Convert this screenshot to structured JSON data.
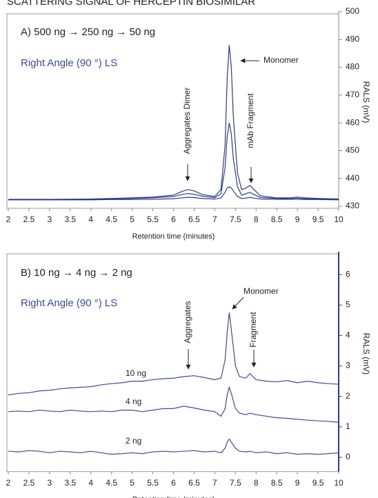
{
  "title": "SCATTERING SIGNAL OF HERCEPTIN BIOSIMILAR",
  "chart_data": [
    {
      "type": "line",
      "x_label": "Retention time (minutes)",
      "y_label": "RALS (mV)",
      "annotations": [
        "A) 500 ng → 250 ng → 50 ng",
        "Right Angle (90 °) LS",
        "Monomer",
        "Aggregates Dimer",
        "mAb Fragment"
      ],
      "x": [
        2,
        3,
        4,
        4.5,
        5,
        5.5,
        6,
        6.2,
        6.35,
        6.5,
        6.7,
        7,
        7.15,
        7.25,
        7.3,
        7.35,
        7.4,
        7.45,
        7.55,
        7.65,
        7.75,
        7.85,
        7.95,
        8.1,
        8.5,
        8.8,
        9,
        9.2,
        9.5,
        10
      ],
      "series": [
        {
          "color": "#2b3a8c",
          "values": [
            432.5,
            432.5,
            432.6,
            432.8,
            433.0,
            433.3,
            434,
            435.3,
            436,
            435.5,
            434.2,
            433.5,
            436,
            452,
            476,
            488,
            480,
            462,
            442,
            436,
            436.5,
            437.5,
            436,
            433.8,
            433,
            433,
            433.3,
            433,
            432.8,
            432.6
          ]
        },
        {
          "color": "#2b3a8c",
          "values": [
            432.4,
            432.4,
            432.5,
            432.6,
            432.8,
            433,
            433.5,
            434.2,
            434.6,
            434.3,
            433.6,
            433.1,
            434.5,
            444,
            455,
            460,
            456,
            447,
            437,
            434,
            434.5,
            435,
            434.2,
            433.2,
            432.8,
            432.7,
            432.9,
            432.7,
            432.6,
            432.5
          ]
        },
        {
          "color": "#2b3a8c",
          "values": [
            432.3,
            432.3,
            432.3,
            432.4,
            432.4,
            432.5,
            432.7,
            433,
            433.2,
            433.1,
            432.8,
            432.6,
            433,
            435,
            436.5,
            437,
            436.6,
            435.5,
            433.5,
            432.8,
            432.9,
            433.2,
            432.9,
            432.6,
            432.5,
            432.5,
            432.5,
            432.4,
            432.4,
            432.3
          ]
        }
      ],
      "xlim": [
        2,
        10
      ],
      "xticks": [
        2,
        2.5,
        3,
        3.5,
        4,
        4.5,
        5,
        5.5,
        6,
        6.5,
        7,
        7.5,
        8,
        8.5,
        9,
        9.5,
        10
      ],
      "ylim": [
        430,
        500
      ],
      "yticks": [
        430,
        440,
        450,
        460,
        470,
        480,
        490,
        500
      ]
    },
    {
      "type": "line",
      "x_label": "Retention time (minutes)",
      "y_label": "RALS (mV)",
      "annotations": [
        "B) 10 ng → 4 ng → 2 ng",
        "Right Angle (90 °) LS",
        "Monomer",
        "Aggregates",
        "Fragment"
      ],
      "x": [
        2,
        2.25,
        2.5,
        2.75,
        3,
        3.25,
        3.5,
        3.75,
        4,
        4.25,
        4.5,
        4.75,
        5,
        5.25,
        5.5,
        5.75,
        6,
        6.25,
        6.5,
        6.75,
        7,
        7.15,
        7.25,
        7.3,
        7.35,
        7.4,
        7.5,
        7.6,
        7.75,
        7.85,
        8,
        8.25,
        8.5,
        8.75,
        9,
        9.25,
        9.5,
        9.75,
        10
      ],
      "series": [
        {
          "name": "10 ng",
          "color": "#3a4c9e",
          "values": [
            2.05,
            2.1,
            2.12,
            2.18,
            2.2,
            2.25,
            2.28,
            2.3,
            2.32,
            2.38,
            2.42,
            2.45,
            2.5,
            2.5,
            2.55,
            2.58,
            2.6,
            2.65,
            2.68,
            2.62,
            2.55,
            2.6,
            3.2,
            4.1,
            4.75,
            4.2,
            3.0,
            2.65,
            2.6,
            2.75,
            2.55,
            2.5,
            2.48,
            2.52,
            2.45,
            2.5,
            2.45,
            2.42,
            2.4
          ]
        },
        {
          "name": "4 ng",
          "color": "#3a4c9e",
          "values": [
            1.5,
            1.52,
            1.5,
            1.55,
            1.52,
            1.5,
            1.55,
            1.52,
            1.5,
            1.52,
            1.5,
            1.55,
            1.55,
            1.5,
            1.55,
            1.6,
            1.6,
            1.68,
            1.62,
            1.55,
            1.5,
            1.35,
            1.6,
            2.05,
            2.3,
            2.1,
            1.6,
            1.45,
            1.4,
            1.45,
            1.4,
            1.35,
            1.3,
            1.28,
            1.25,
            1.22,
            1.2,
            1.18,
            1.15
          ]
        },
        {
          "name": "2 ng",
          "color": "#3a4c9e",
          "values": [
            0.2,
            0.18,
            0.22,
            0.2,
            0.15,
            0.2,
            0.18,
            0.15,
            0.2,
            0.15,
            0.1,
            0.12,
            0.15,
            0.12,
            0.18,
            0.2,
            0.18,
            0.2,
            0.22,
            0.18,
            0.2,
            0.15,
            0.3,
            0.5,
            0.6,
            0.5,
            0.3,
            0.2,
            0.18,
            0.2,
            0.15,
            0.18,
            0.12,
            0.15,
            0.1,
            0.12,
            0.1,
            0.12,
            0.15
          ]
        }
      ],
      "xlim": [
        2,
        10
      ],
      "xticks": [
        2,
        2.5,
        3,
        3.5,
        4,
        4.5,
        5,
        5.5,
        6,
        6.5,
        7,
        7.5,
        8,
        8.5,
        9,
        9.5,
        10
      ],
      "ylim": [
        -0.4,
        6.75
      ],
      "yticks": [
        0,
        1,
        2,
        3,
        4,
        5,
        6
      ]
    }
  ]
}
